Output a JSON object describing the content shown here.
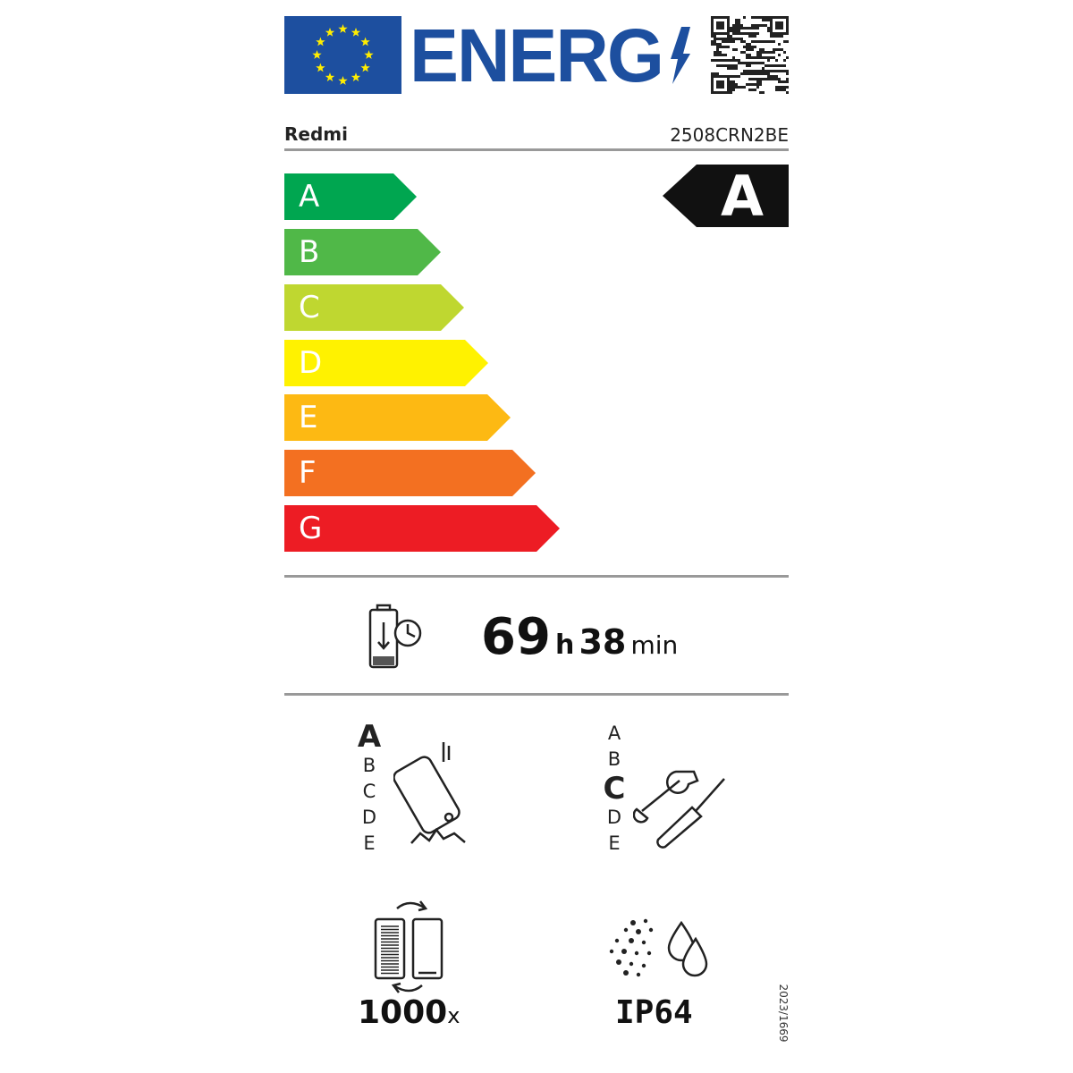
{
  "header": {
    "logo_text": "ENERG",
    "flag": "eu-flag",
    "qr": "qr-code",
    "accent": "#1d4f9f"
  },
  "supplier": "Redmi",
  "model": "2508CRN2BE",
  "scale": {
    "classes": [
      {
        "letter": "A",
        "color": "#00a650"
      },
      {
        "letter": "B",
        "color": "#50b848"
      },
      {
        "letter": "C",
        "color": "#bfd730"
      },
      {
        "letter": "D",
        "color": "#fff200"
      },
      {
        "letter": "E",
        "color": "#fdb913"
      },
      {
        "letter": "F",
        "color": "#f37021"
      },
      {
        "letter": "G",
        "color": "#ed1c24"
      }
    ]
  },
  "energy_class": "A",
  "battery_endurance": {
    "hours": "69",
    "h_unit": "h",
    "minutes": "38",
    "min_unit": "min"
  },
  "drop_resistance": {
    "classes": [
      "A",
      "B",
      "C",
      "D",
      "E"
    ],
    "selected": "A"
  },
  "repairability": {
    "classes": [
      "A",
      "B",
      "C",
      "D",
      "E"
    ],
    "selected": "C"
  },
  "battery_cycles": {
    "value": "1000",
    "unit": "x"
  },
  "ingress_protection": "IP64",
  "regulation": "2023/1669"
}
